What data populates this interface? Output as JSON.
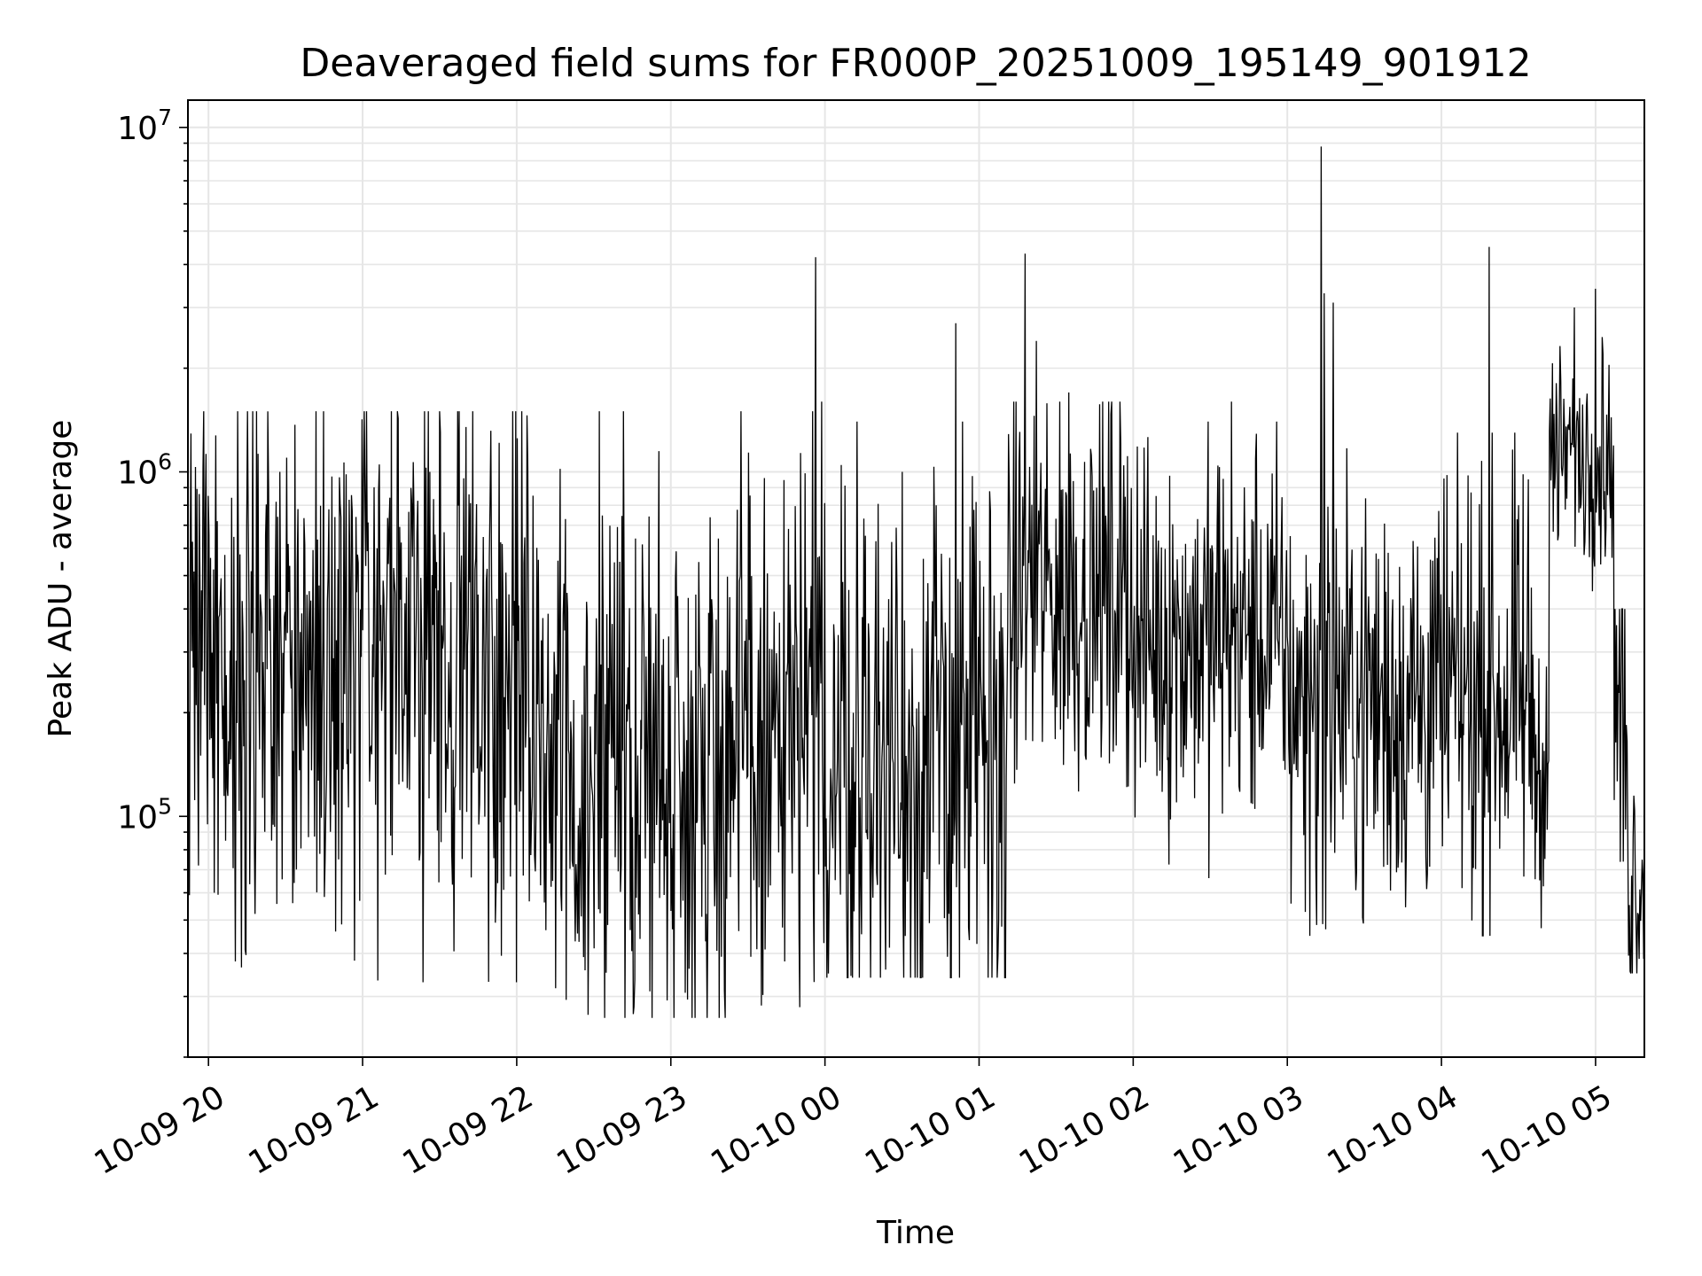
{
  "chart_data": {
    "type": "line",
    "title": "Deaveraged field sums for FR000P_20251009_195149_901912",
    "xlabel": "Time",
    "ylabel": "Peak ADU - average",
    "yscale": "log",
    "ylim": [
      20000,
      12000000
    ],
    "xlim_hours": [
      -0.1333,
      9.3167
    ],
    "grid": true,
    "line_color": "#000000",
    "x_ticks": [
      {
        "hour": 0,
        "label": "10-09 20"
      },
      {
        "hour": 1,
        "label": "10-09 21"
      },
      {
        "hour": 2,
        "label": "10-09 22"
      },
      {
        "hour": 3,
        "label": "10-09 23"
      },
      {
        "hour": 4,
        "label": "10-10 00"
      },
      {
        "hour": 5,
        "label": "10-10 01"
      },
      {
        "hour": 6,
        "label": "10-10 02"
      },
      {
        "hour": 7,
        "label": "10-10 03"
      },
      {
        "hour": 8,
        "label": "10-10 04"
      },
      {
        "hour": 9,
        "label": "10-10 05"
      }
    ],
    "y_ticks": [
      {
        "value": 100000,
        "base": "10",
        "exp": "5"
      },
      {
        "value": 1000000,
        "base": "10",
        "exp": "6"
      },
      {
        "value": 10000000,
        "base": "10",
        "exp": "7"
      }
    ],
    "series_description": "Dense noisy time series sampled roughly every 10 s from 19:52 to 05:19; values mostly between 3e4 and 1.5e6 with spikes up to ~9e6.",
    "segments": [
      {
        "start": -0.1333,
        "end": 2.0,
        "median": 300000,
        "spread": 1.35,
        "min": 33000,
        "max": 1500000
      },
      {
        "start": 2.0,
        "end": 4.0,
        "median": 150000,
        "spread": 1.4,
        "min": 26000,
        "max": 1500000
      },
      {
        "start": 4.0,
        "end": 5.2,
        "median": 150000,
        "spread": 1.4,
        "min": 34000,
        "max": 1400000
      },
      {
        "start": 5.2,
        "end": 6.0,
        "median": 450000,
        "spread": 0.9,
        "min": 65000,
        "max": 1600000
      },
      {
        "start": 6.0,
        "end": 7.0,
        "median": 330000,
        "spread": 0.9,
        "min": 60000,
        "max": 1400000
      },
      {
        "start": 7.0,
        "end": 8.6,
        "median": 220000,
        "spread": 1.0,
        "min": 45000,
        "max": 1300000
      },
      {
        "start": 8.6,
        "end": 8.7,
        "median": 140000,
        "spread": 0.6,
        "min": 40000,
        "max": 300000
      },
      {
        "start": 8.7,
        "end": 9.12,
        "median": 1100000,
        "spread": 0.5,
        "min": 450000,
        "max": 3400000
      },
      {
        "start": 9.12,
        "end": 9.2,
        "median": 200000,
        "spread": 0.8,
        "min": 60000,
        "max": 400000
      },
      {
        "start": 9.2,
        "end": 9.3167,
        "median": 70000,
        "spread": 0.6,
        "min": 35000,
        "max": 300000
      }
    ],
    "spikes": [
      {
        "hour": 3.94,
        "value": 4200000
      },
      {
        "hour": 3.98,
        "value": 1600000
      },
      {
        "hour": 4.85,
        "value": 2700000
      },
      {
        "hour": 5.3,
        "value": 4300000
      },
      {
        "hour": 5.37,
        "value": 2400000
      },
      {
        "hour": 5.58,
        "value": 1700000
      },
      {
        "hour": 6.64,
        "value": 1600000
      },
      {
        "hour": 7.22,
        "value": 8800000
      },
      {
        "hour": 7.24,
        "value": 3300000
      },
      {
        "hour": 7.3,
        "value": 3100000
      },
      {
        "hour": 8.31,
        "value": 4500000
      },
      {
        "hour": 8.86,
        "value": 3000000
      },
      {
        "hour": 9.0,
        "value": 3400000
      },
      {
        "hour": 2.7,
        "value": 26000
      },
      {
        "hour": 2.76,
        "value": 28000
      },
      {
        "hour": 7.25,
        "value": 47000
      },
      {
        "hour": 9.05,
        "value": 2200000
      }
    ]
  }
}
